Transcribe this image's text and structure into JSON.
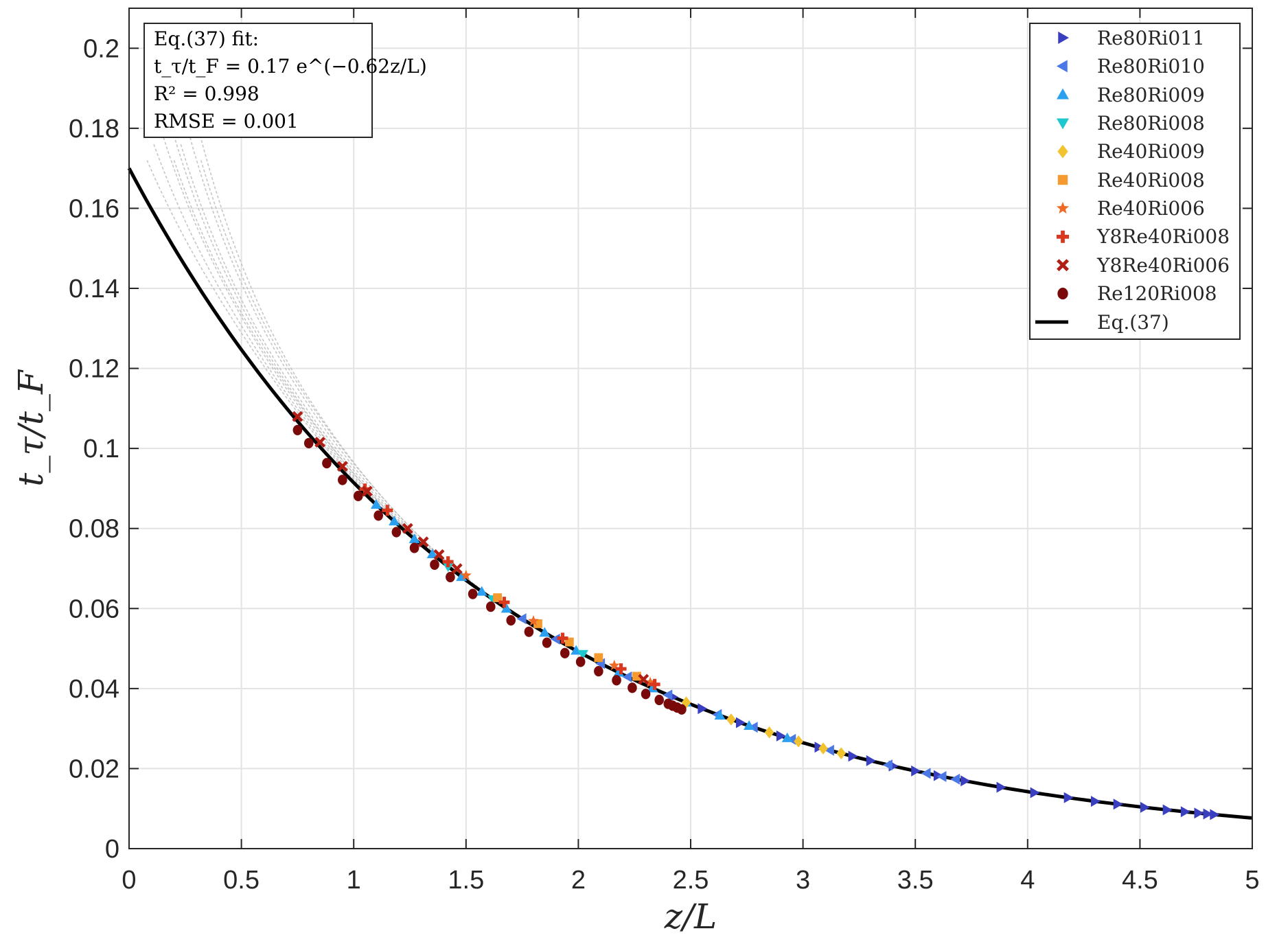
{
  "chart_data": {
    "type": "scatter",
    "xlabel": "z/L",
    "ylabel": "t_τ/t_F",
    "xlim": [
      0,
      5
    ],
    "ylim": [
      0,
      0.21
    ],
    "xticks": [
      "0",
      "0.5",
      "1",
      "1.5",
      "2",
      "2.5",
      "3",
      "3.5",
      "4",
      "4.5",
      "5"
    ],
    "yticks": [
      "0",
      "0.02",
      "0.04",
      "0.06",
      "0.08",
      "0.1",
      "0.12",
      "0.14",
      "0.16",
      "0.18",
      "0.2"
    ],
    "grid": true,
    "legend_position": "top-right",
    "annotation": {
      "lines": [
        "Eq.(37) fit:",
        "t_τ/t_F = 0.17 e^(−0.62z/L)",
        "R² = 0.998",
        "RMSE = 0.001"
      ]
    },
    "fit": {
      "name": "Eq.(37)",
      "a": 0.17,
      "b": 0.62,
      "color": "#000000"
    },
    "series": [
      {
        "name": "Re80Ri011",
        "marker": "triangle-right",
        "color": "#3a3fc0",
        "x": [
          2.42,
          2.55,
          2.72,
          2.9,
          3.07,
          3.22,
          3.3,
          3.4,
          3.5,
          3.6,
          3.72,
          3.88,
          4.03,
          4.18,
          4.3,
          4.4,
          4.52,
          4.62,
          4.7,
          4.76,
          4.8,
          4.83
        ]
      },
      {
        "name": "Re80Ri010",
        "marker": "triangle-left",
        "color": "#4a79e6",
        "x": [
          1.75,
          1.9,
          2.1,
          2.22,
          2.4,
          2.62,
          2.78,
          2.95,
          3.12,
          3.38,
          3.55,
          3.62,
          3.68
        ]
      },
      {
        "name": "Re80Ri009",
        "marker": "triangle-up",
        "color": "#2b9ff0",
        "x": [
          1.1,
          1.18,
          1.27,
          1.35,
          1.48,
          1.57,
          1.68,
          1.85,
          1.99,
          2.18,
          2.33,
          2.48,
          2.63,
          2.76,
          2.93
        ]
      },
      {
        "name": "Re80Ri008",
        "marker": "triangle-down",
        "color": "#1fc7cf",
        "x": [
          1.42,
          1.62,
          2.02
        ]
      },
      {
        "name": "Re40Ri009",
        "marker": "diamond",
        "color": "#f2c22f",
        "x": [
          2.48,
          2.68,
          2.85,
          2.98,
          3.09,
          3.17
        ]
      },
      {
        "name": "Re40Ri008",
        "marker": "square",
        "color": "#f59a2e",
        "x": [
          1.64,
          1.82,
          1.96,
          2.09,
          2.26
        ]
      },
      {
        "name": "Re40Ri006",
        "marker": "star",
        "color": "#ef6a24",
        "x": [
          1.5,
          1.8,
          2.16,
          2.32
        ]
      },
      {
        "name": "Y8Re40Ri008",
        "marker": "plus",
        "color": "#d9381e",
        "x": [
          1.05,
          1.15,
          1.42,
          1.67,
          1.93,
          2.19,
          2.34
        ]
      },
      {
        "name": "Y8Re40Ri006",
        "marker": "x",
        "color": "#b01e14",
        "x": [
          0.75,
          0.85,
          0.95,
          1.06,
          1.24,
          1.31,
          1.38,
          1.46,
          2.29
        ]
      },
      {
        "name": "Re120Ri008",
        "marker": "circle",
        "color": "#7a0a0a",
        "x": [
          0.75,
          0.8,
          0.88,
          0.95,
          1.02,
          1.11,
          1.19,
          1.27,
          1.36,
          1.43,
          1.53,
          1.61,
          1.7,
          1.78,
          1.86,
          1.94,
          2.01,
          2.09,
          2.17,
          2.24,
          2.3,
          2.36,
          2.4,
          2.42,
          2.44,
          2.46
        ]
      }
    ]
  }
}
